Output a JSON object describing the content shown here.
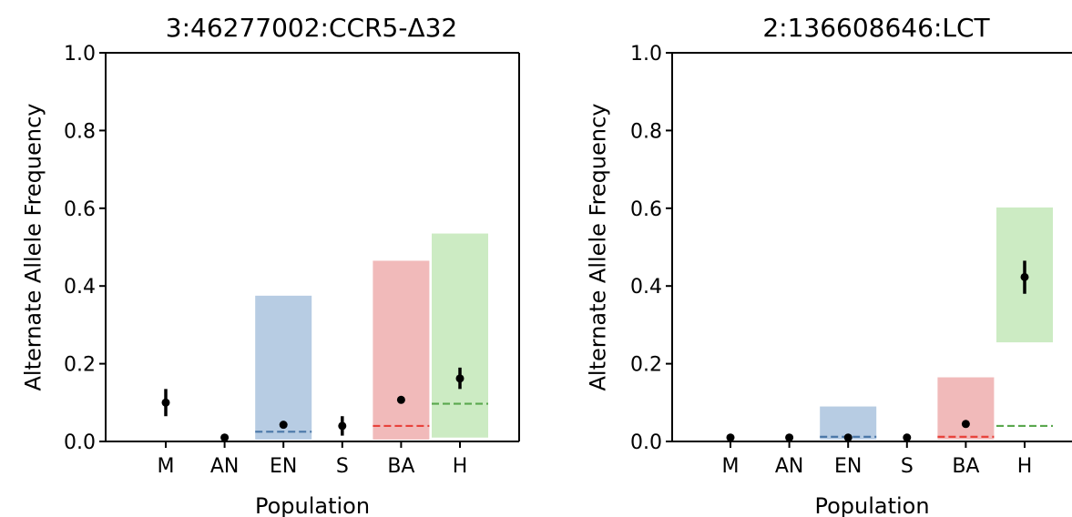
{
  "chart_data": [
    {
      "type": "scatter",
      "title": "3:46277002:CCR5-Δ32",
      "xlabel": "Population",
      "ylabel": "Alternate Allele Frequency",
      "ylim": [
        0,
        1
      ],
      "yticks": [
        "0.0",
        "0.2",
        "0.4",
        "0.6",
        "0.8",
        "1.0"
      ],
      "categories": [
        "M",
        "AN",
        "EN",
        "S",
        "BA",
        "H"
      ],
      "spines": "box",
      "points": [
        {
          "category": "M",
          "value": 0.1,
          "err_low": 0.065,
          "err_high": 0.135
        },
        {
          "category": "AN",
          "value": 0.01,
          "err_low": 0.005,
          "err_high": 0.015
        },
        {
          "category": "EN",
          "value": 0.043,
          "err_low": 0.04,
          "err_high": 0.047
        },
        {
          "category": "S",
          "value": 0.04,
          "err_low": 0.015,
          "err_high": 0.065
        },
        {
          "category": "BA",
          "value": 0.107,
          "err_low": 0.098,
          "err_high": 0.116
        },
        {
          "category": "H",
          "value": 0.162,
          "err_low": 0.135,
          "err_high": 0.19
        }
      ],
      "ranges": [
        {
          "category": "EN",
          "low": 0.005,
          "high": 0.375,
          "mean": 0.025,
          "color": "#b7cce3",
          "line_color": "#4a77a8"
        },
        {
          "category": "BA",
          "low": 0.005,
          "high": 0.465,
          "mean": 0.04,
          "color": "#f1baba",
          "line_color": "#e8423b"
        },
        {
          "category": "H",
          "low": 0.01,
          "high": 0.535,
          "mean": 0.097,
          "color": "#ccebc3",
          "line_color": "#5aa84e"
        }
      ]
    },
    {
      "type": "scatter",
      "title": "2:136608646:LCT",
      "xlabel": "Population",
      "ylabel": "Alternate Allele Frequency",
      "ylim": [
        0,
        1
      ],
      "yticks": [
        "0.0",
        "0.2",
        "0.4",
        "0.6",
        "0.8",
        "1.0"
      ],
      "categories": [
        "M",
        "AN",
        "EN",
        "S",
        "BA",
        "H"
      ],
      "spines": "left-bottom-top",
      "points": [
        {
          "category": "M",
          "value": 0.01,
          "err_low": 0.004,
          "err_high": 0.016
        },
        {
          "category": "AN",
          "value": 0.01,
          "err_low": 0.005,
          "err_high": 0.015
        },
        {
          "category": "EN",
          "value": 0.01,
          "err_low": 0.006,
          "err_high": 0.014
        },
        {
          "category": "S",
          "value": 0.01,
          "err_low": 0.0,
          "err_high": 0.02
        },
        {
          "category": "BA",
          "value": 0.045,
          "err_low": 0.041,
          "err_high": 0.049
        },
        {
          "category": "H",
          "value": 0.423,
          "err_low": 0.38,
          "err_high": 0.465
        }
      ],
      "ranges": [
        {
          "category": "EN",
          "low": 0.005,
          "high": 0.09,
          "mean": 0.012,
          "color": "#b7cce3",
          "line_color": "#4a77a8"
        },
        {
          "category": "BA",
          "low": 0.005,
          "high": 0.165,
          "mean": 0.012,
          "color": "#f1baba",
          "line_color": "#e8423b"
        },
        {
          "category": "H",
          "low": 0.255,
          "high": 0.602,
          "mean": 0.04,
          "color": "#ccebc3",
          "line_color": "#5aa84e"
        }
      ]
    }
  ]
}
